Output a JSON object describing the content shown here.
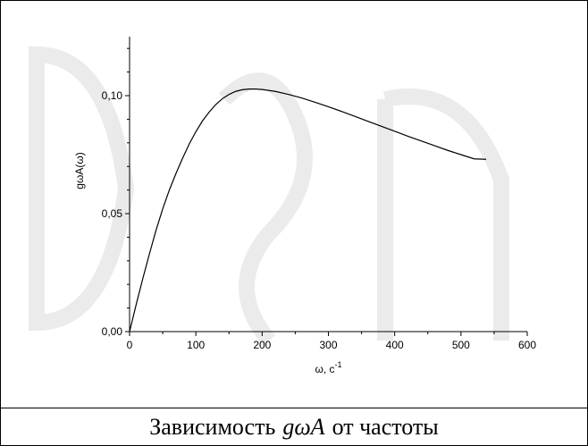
{
  "chart_data": {
    "type": "line",
    "xlabel": "ω, c",
    "xlabel_sup": "-1",
    "ylabel": "gωA(ω)",
    "xlim": [
      0,
      600
    ],
    "ylim": [
      0,
      0.125
    ],
    "x_ticks": [
      0,
      100,
      200,
      300,
      400,
      500,
      600
    ],
    "x_tick_labels": [
      "0",
      "100",
      "200",
      "300",
      "400",
      "500",
      "600"
    ],
    "y_ticks": [
      0,
      0.05,
      0.1
    ],
    "y_tick_labels": [
      "0,00",
      "0,05",
      "0,10"
    ],
    "grid": false,
    "series": [
      {
        "x": [
          0,
          10,
          20,
          30,
          40,
          50,
          60,
          70,
          80,
          90,
          100,
          110,
          120,
          130,
          140,
          150,
          160,
          170,
          180,
          190,
          200,
          220,
          240,
          260,
          280,
          300,
          320,
          340,
          360,
          380,
          400,
          420,
          440,
          460,
          480,
          500,
          520,
          538
        ],
        "y": [
          0,
          0.0115,
          0.0225,
          0.033,
          0.043,
          0.052,
          0.06,
          0.067,
          0.0735,
          0.0795,
          0.0847,
          0.0893,
          0.093,
          0.0962,
          0.0987,
          0.1005,
          0.1018,
          0.1025,
          0.1028,
          0.1028,
          0.1026,
          0.1018,
          0.1005,
          0.099,
          0.0972,
          0.0953,
          0.0933,
          0.0912,
          0.0891,
          0.087,
          0.0849,
          0.0828,
          0.0808,
          0.0788,
          0.0768,
          0.075,
          0.0732,
          0.073
        ]
      }
    ],
    "color": "#000000"
  },
  "caption": {
    "prefix": "Зависимость",
    "symbol": "gωA",
    "suffix": "от частоты"
  }
}
